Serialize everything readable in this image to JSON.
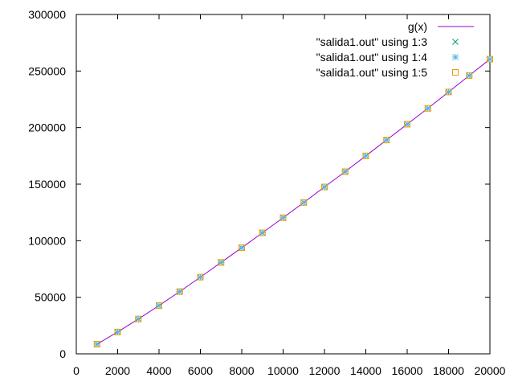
{
  "chart_data": {
    "type": "scatter",
    "xlim": [
      0,
      20000
    ],
    "ylim": [
      0,
      300000
    ],
    "x_ticks": [
      0,
      2000,
      4000,
      6000,
      8000,
      10000,
      12000,
      14000,
      16000,
      18000,
      20000
    ],
    "y_ticks": [
      0,
      50000,
      100000,
      150000,
      200000,
      250000,
      300000
    ],
    "grid": false,
    "legend_position": "top-right",
    "x": [
      1000,
      2000,
      3000,
      4000,
      5000,
      6000,
      7000,
      8000,
      9000,
      10000,
      11000,
      12000,
      13000,
      14000,
      15000,
      16000,
      17000,
      18000,
      19000,
      20000
    ],
    "line": {
      "name": "g(x)",
      "color": "#9400d3",
      "x": [
        1000,
        2000,
        3000,
        4000,
        5000,
        6000,
        7000,
        8000,
        9000,
        10000,
        11000,
        12000,
        13000,
        14000,
        15000,
        16000,
        17000,
        18000,
        19000,
        20000
      ],
      "y": [
        8500,
        19300,
        30800,
        42700,
        55000,
        67800,
        80800,
        93800,
        107000,
        120300,
        133800,
        147500,
        161000,
        175000,
        189000,
        203000,
        217000,
        231500,
        246000,
        260500
      ]
    },
    "series": [
      {
        "name": "\"salida1.out\" using 1:3",
        "marker": "x",
        "color": "#009e73",
        "values": [
          8500,
          19300,
          30800,
          42700,
          55000,
          67800,
          80800,
          93800,
          107000,
          120300,
          133800,
          147500,
          161000,
          175000,
          189000,
          203000,
          217000,
          231500,
          246000,
          260500
        ]
      },
      {
        "name": "\"salida1.out\" using 1:4",
        "marker": "star",
        "color": "#56b4e9",
        "values": [
          8500,
          19300,
          30800,
          42700,
          55000,
          67800,
          80800,
          93800,
          107000,
          120300,
          133800,
          147500,
          161000,
          175000,
          189000,
          203000,
          217000,
          231500,
          246000,
          260500
        ]
      },
      {
        "name": "\"salida1.out\" using 1:5",
        "marker": "square",
        "color": "#e69f00",
        "values": [
          8500,
          19300,
          30800,
          42700,
          55000,
          67800,
          80800,
          93800,
          107000,
          120300,
          133800,
          147500,
          161000,
          175000,
          189000,
          203000,
          217000,
          231500,
          246000,
          260500
        ]
      }
    ]
  }
}
